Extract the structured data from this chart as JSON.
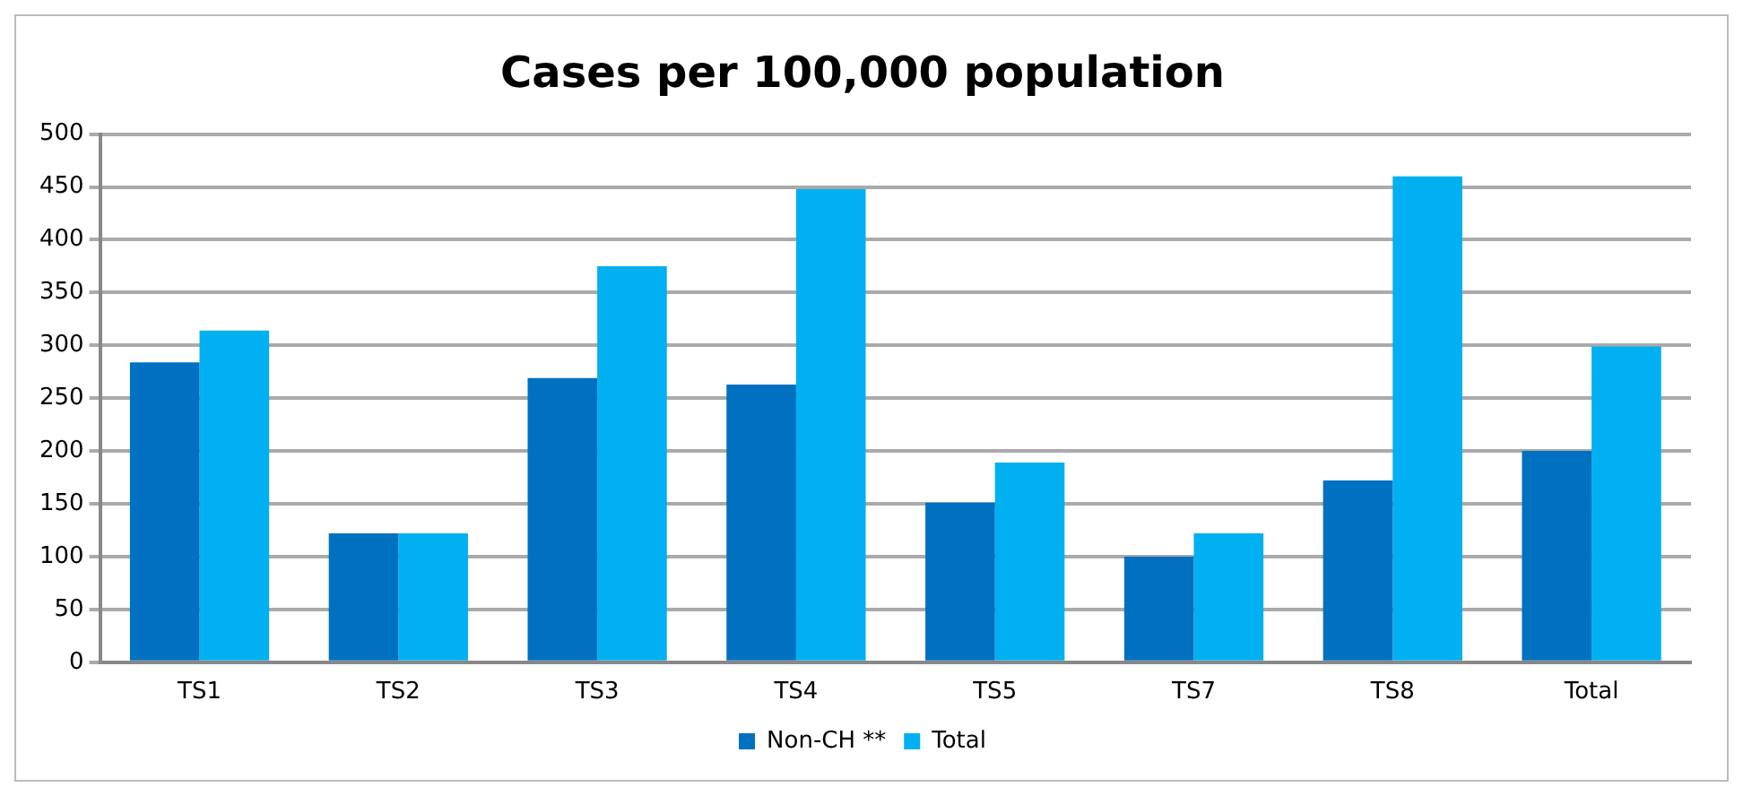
{
  "chart_data": {
    "type": "bar",
    "title": "Cases per 100,000 population",
    "categories": [
      "TS1",
      "TS2",
      "TS3",
      "TS4",
      "TS5",
      "TS7",
      "TS8",
      "Total"
    ],
    "series": [
      {
        "name": "Non-CH **",
        "color": "#0070c0",
        "values": [
          284,
          122,
          269,
          263,
          151,
          100,
          172,
          200
        ]
      },
      {
        "name": "Total",
        "color": "#00b0f0",
        "values": [
          314,
          122,
          375,
          448,
          189,
          122,
          460,
          299
        ]
      }
    ],
    "ylim": [
      0,
      500
    ],
    "yticks": [
      0,
      50,
      100,
      150,
      200,
      250,
      300,
      350,
      400,
      450,
      500
    ],
    "grid": "y",
    "legend": "bottom"
  }
}
